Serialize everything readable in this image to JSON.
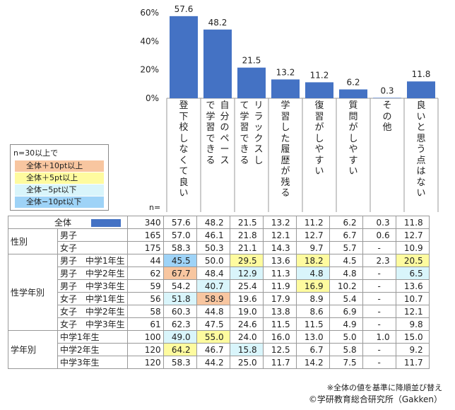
{
  "colors": {
    "bar": "#4472c4",
    "plus10": "#f8c6a0",
    "plus5": "#fefb9f",
    "minus5": "#d9f5fb",
    "minus10": "#9ed3f7"
  },
  "chart_data": {
    "type": "bar",
    "title": "",
    "categories": [
      "登下校しなくて良い",
      "自分のペースで学習できる",
      "リラックスして学習できる",
      "学習した履歴が残る",
      "復習がしやすい",
      "質問がしやすい",
      "その他",
      "良いと思う点はない"
    ],
    "values": [
      57.6,
      48.2,
      21.5,
      13.2,
      11.2,
      6.2,
      0.3,
      11.8
    ],
    "value_labels": [
      "57.6",
      "48.2",
      "21.5",
      "13.2",
      "11.2",
      "6.2",
      "0.3",
      "11.8"
    ],
    "yticks": [
      "60%",
      "40%",
      "20%",
      "0%"
    ],
    "ylim": [
      0,
      60
    ]
  },
  "legend": {
    "title": "n=30以上で",
    "items": [
      {
        "key": "plus10",
        "label": "全体＋10pt以上"
      },
      {
        "key": "plus5",
        "label": "全体＋5pt以上"
      },
      {
        "key": "minus5",
        "label": "全体−5pt以下"
      },
      {
        "key": "minus10",
        "label": "全体−10pt以下"
      }
    ]
  },
  "n_caption": "n=",
  "table": {
    "rows": [
      {
        "group": "",
        "sub": "全体",
        "n": "340",
        "vals": [
          "57.6",
          "48.2",
          "21.5",
          "13.2",
          "11.2",
          "6.2",
          "0.3",
          "11.8"
        ],
        "hl": [
          "",
          "",
          "",
          "",
          "",
          "",
          "",
          ""
        ],
        "total": true
      },
      {
        "group": "性別",
        "sub": "男子",
        "n": "165",
        "vals": [
          "57.0",
          "46.1",
          "21.8",
          "12.1",
          "12.7",
          "6.7",
          "0.6",
          "12.7"
        ],
        "hl": [
          "",
          "",
          "",
          "",
          "",
          "",
          "",
          ""
        ]
      },
      {
        "group": "",
        "sub": "女子",
        "n": "175",
        "vals": [
          "58.3",
          "50.3",
          "21.1",
          "14.3",
          "9.7",
          "5.7",
          "-",
          "10.9"
        ],
        "hl": [
          "",
          "",
          "",
          "",
          "",
          "",
          "",
          ""
        ]
      },
      {
        "group": "性学年別",
        "sub": "男子　中学1年生",
        "n": "44",
        "vals": [
          "45.5",
          "50.0",
          "29.5",
          "13.6",
          "18.2",
          "4.5",
          "2.3",
          "20.5"
        ],
        "hl": [
          "minus10",
          "",
          "plus5",
          "",
          "plus5",
          "",
          "",
          "plus5"
        ]
      },
      {
        "group": "",
        "sub": "男子　中学2年生",
        "n": "62",
        "vals": [
          "67.7",
          "48.4",
          "12.9",
          "11.3",
          "4.8",
          "4.8",
          "-",
          "6.5"
        ],
        "hl": [
          "plus10",
          "",
          "minus5",
          "",
          "minus5",
          "",
          "",
          "minus5"
        ]
      },
      {
        "group": "",
        "sub": "男子　中学3年生",
        "n": "59",
        "vals": [
          "54.2",
          "40.7",
          "25.4",
          "11.9",
          "16.9",
          "10.2",
          "-",
          "13.6"
        ],
        "hl": [
          "",
          "minus5",
          "",
          "",
          "plus5",
          "",
          "",
          ""
        ]
      },
      {
        "group": "",
        "sub": "女子　中学1年生",
        "n": "56",
        "vals": [
          "51.8",
          "58.9",
          "19.6",
          "17.9",
          "8.9",
          "5.4",
          "-",
          "10.7"
        ],
        "hl": [
          "minus5",
          "plus10",
          "",
          "",
          "",
          "",
          "",
          ""
        ]
      },
      {
        "group": "",
        "sub": "女子　中学2年生",
        "n": "58",
        "vals": [
          "60.3",
          "44.8",
          "19.0",
          "13.8",
          "8.6",
          "6.9",
          "-",
          "12.1"
        ],
        "hl": [
          "",
          "",
          "",
          "",
          "",
          "",
          "",
          ""
        ]
      },
      {
        "group": "",
        "sub": "女子　中学3年生",
        "n": "61",
        "vals": [
          "62.3",
          "47.5",
          "24.6",
          "11.5",
          "11.5",
          "4.9",
          "-",
          "9.8"
        ],
        "hl": [
          "",
          "",
          "",
          "",
          "",
          "",
          "",
          ""
        ]
      },
      {
        "group": "学年別",
        "sub": "中学1年生",
        "n": "100",
        "vals": [
          "49.0",
          "55.0",
          "24.0",
          "16.0",
          "13.0",
          "5.0",
          "1.0",
          "15.0"
        ],
        "hl": [
          "minus5",
          "plus5",
          "",
          "",
          "",
          "",
          "",
          ""
        ]
      },
      {
        "group": "",
        "sub": "中学2年生",
        "n": "120",
        "vals": [
          "64.2",
          "46.7",
          "15.8",
          "12.5",
          "6.7",
          "5.8",
          "-",
          "9.2"
        ],
        "hl": [
          "plus5",
          "",
          "minus5",
          "",
          "",
          "",
          "",
          ""
        ]
      },
      {
        "group": "",
        "sub": "中学3年生",
        "n": "120",
        "vals": [
          "58.3",
          "44.2",
          "25.0",
          "11.7",
          "14.2",
          "7.5",
          "-",
          "11.7"
        ],
        "hl": [
          "",
          "",
          "",
          "",
          "",
          "",
          "",
          ""
        ]
      }
    ]
  },
  "footnotes": {
    "sort_note": "※全体の値を基準に降順並び替え",
    "copyright": "©学研教育総合研究所（Gakken）"
  }
}
